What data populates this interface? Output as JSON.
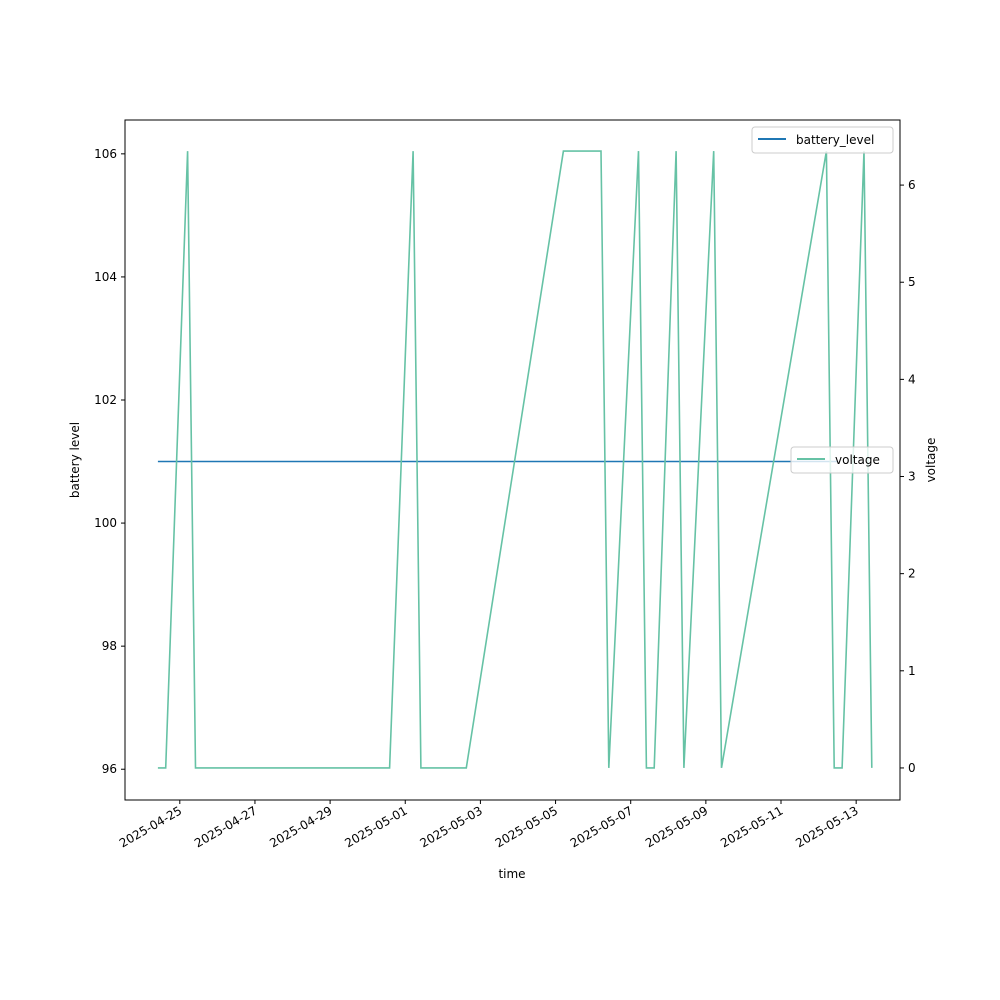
{
  "chart_data": {
    "type": "line",
    "xlabel": "time",
    "y_left_label": "battery level",
    "y_right_label": "voltage",
    "x_tick_labels": [
      "2025-04-25",
      "2025-04-27",
      "2025-04-29",
      "2025-05-01",
      "2025-05-03",
      "2025-05-05",
      "2025-05-07",
      "2025-05-09",
      "2025-05-11",
      "2025-05-13"
    ],
    "x_ticks": [
      "2025-04-25",
      "2025-04-27",
      "2025-04-29",
      "2025-05-01",
      "2025-05-03",
      "2025-05-05",
      "2025-05-07",
      "2025-05-09",
      "2025-05-11",
      "2025-05-13"
    ],
    "xlim": [
      "2025-04-23T13:00",
      "2025-05-14T04:00"
    ],
    "y_left_ticks": [
      "96",
      "98",
      "100",
      "102",
      "104",
      "106"
    ],
    "y_left_lim": [
      95.5,
      106.55
    ],
    "y_right_ticks": [
      "0",
      "1",
      "2",
      "3",
      "4",
      "5",
      "6"
    ],
    "y_right_lim": [
      -0.33,
      6.67
    ],
    "grid": false,
    "legend_left": {
      "entries": [
        "battery_level"
      ],
      "placement": "upper-right"
    },
    "legend_right": {
      "entries": [
        "voltage"
      ],
      "placement": "center-right"
    },
    "series": [
      {
        "name": "battery_level",
        "axis": "left",
        "color": "#1f77b4",
        "x": [
          "2025-04-24T10:00",
          "2025-05-12T12:00"
        ],
        "values": [
          101.0,
          101.0
        ]
      },
      {
        "name": "voltage",
        "axis": "right",
        "color": "#66c2a5",
        "x": [
          "2025-04-24T10:00",
          "2025-04-24T15:00",
          "2025-04-25T05:00",
          "2025-04-25T10:00",
          "2025-04-30T14:00",
          "2025-05-01T05:00",
          "2025-05-01T10:00",
          "2025-05-02T15:00",
          "2025-05-05T05:00",
          "2025-05-06T05:00",
          "2025-05-06T10:00",
          "2025-05-07T05:00",
          "2025-05-07T10:00",
          "2025-05-07T15:00",
          "2025-05-08T05:00",
          "2025-05-08T10:00",
          "2025-05-09T05:00",
          "2025-05-09T10:00",
          "2025-05-12T05:00",
          "2025-05-12T10:00",
          "2025-05-12T15:00",
          "2025-05-13T05:00",
          "2025-05-13T10:00"
        ],
        "values": [
          0,
          0,
          6.35,
          0,
          0,
          6.35,
          0,
          0,
          6.35,
          6.35,
          0,
          6.35,
          0,
          0,
          6.35,
          0,
          6.35,
          0,
          6.35,
          0,
          0,
          6.35,
          0
        ]
      }
    ]
  }
}
